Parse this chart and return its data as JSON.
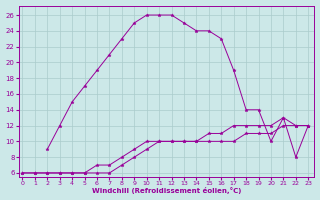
{
  "xlabel": "Windchill (Refroidissement éolien,°C)",
  "background_color": "#cce8e8",
  "grid_color": "#aacccc",
  "line_color": "#990099",
  "x_ticks": [
    0,
    1,
    2,
    3,
    4,
    5,
    6,
    7,
    8,
    9,
    10,
    11,
    12,
    13,
    14,
    15,
    16,
    17,
    18,
    19,
    20,
    21,
    22,
    23
  ],
  "y_ticks": [
    6,
    8,
    10,
    12,
    14,
    16,
    18,
    20,
    22,
    24,
    26
  ],
  "ylim": [
    5.5,
    27.2
  ],
  "xlim": [
    -0.3,
    23.5
  ],
  "series": [
    {
      "x": [
        0,
        1,
        2,
        3,
        4,
        5,
        6,
        7,
        8,
        9,
        10,
        11,
        12,
        13,
        14,
        15,
        16,
        17,
        18,
        19,
        20,
        21,
        22,
        23
      ],
      "y": [
        6,
        6,
        6,
        6,
        6,
        6,
        6,
        6,
        7,
        8,
        9,
        10,
        10,
        10,
        10,
        10,
        10,
        10,
        11,
        11,
        11,
        12,
        12,
        12
      ]
    },
    {
      "x": [
        0,
        1,
        2,
        3,
        4,
        5,
        6,
        7,
        8,
        9,
        10,
        11,
        12,
        13,
        14,
        15,
        16,
        17,
        18,
        19,
        20,
        21,
        22,
        23
      ],
      "y": [
        6,
        6,
        6,
        6,
        6,
        6,
        7,
        7,
        8,
        9,
        10,
        10,
        10,
        10,
        10,
        11,
        11,
        12,
        12,
        12,
        12,
        13,
        12,
        12
      ]
    },
    {
      "x": [
        2,
        3,
        4,
        5,
        6,
        7,
        8,
        9,
        10,
        11,
        12,
        13,
        14,
        15,
        16,
        17,
        18,
        19,
        20,
        21,
        22,
        23
      ],
      "y": [
        9,
        12,
        15,
        17,
        19,
        21,
        23,
        25,
        26,
        26,
        26,
        25,
        24,
        24,
        23,
        19,
        14,
        14,
        10,
        13,
        8,
        12
      ]
    }
  ]
}
